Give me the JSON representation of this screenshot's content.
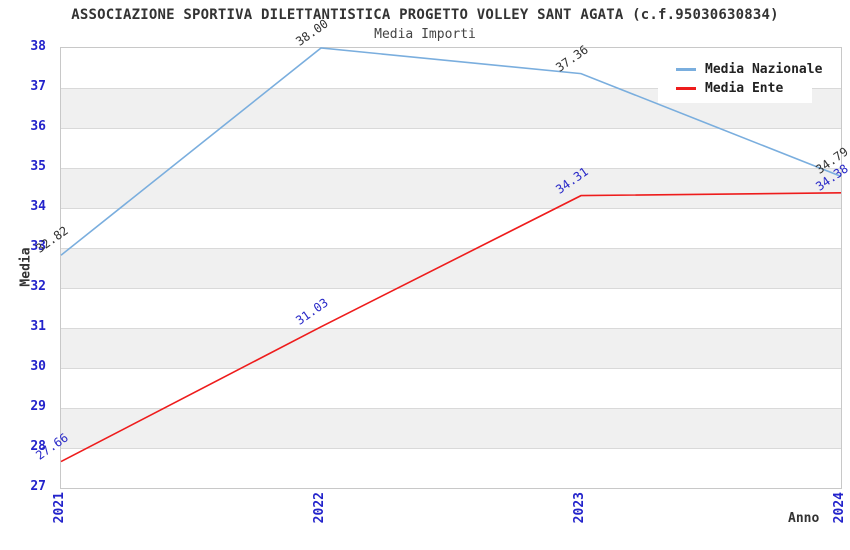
{
  "title": "ASSOCIAZIONE SPORTIVA DILETTANTISTICA PROGETTO VOLLEY SANT AGATA (c.f.95030630834)",
  "subtitle": "Media Importi",
  "colors": {
    "tick_label_blue": "#2323cb",
    "dark_text": "#333333",
    "grid_line": "#d9d9d9",
    "plot_border": "#c8c8c8"
  },
  "chart_data": {
    "type": "line",
    "title": "ASSOCIAZIONE SPORTIVA DILETTANTISTICA PROGETTO VOLLEY SANT AGATA (c.f.95030630834)",
    "subtitle": "Media Importi",
    "x": [
      "2021",
      "2022",
      "2023",
      "2024"
    ],
    "xlabel": "Anno",
    "ylabel": "Media",
    "ylim": [
      27,
      38
    ],
    "ytick_step": 1,
    "grid": "horizontal",
    "band_colors": [
      "#ffffff",
      "#f0f0f0"
    ],
    "legend_position": "top-right",
    "value_decimals": 2,
    "series": [
      {
        "name": "Media Nazionale",
        "color": "#7aaede",
        "label_color": "#333333",
        "values": [
          32.82,
          38.0,
          37.36,
          34.79
        ]
      },
      {
        "name": "Media Ente",
        "color": "#ee1c1c",
        "label_color": "#2a2ac8",
        "values": [
          27.66,
          31.03,
          34.31,
          34.38
        ]
      }
    ]
  }
}
